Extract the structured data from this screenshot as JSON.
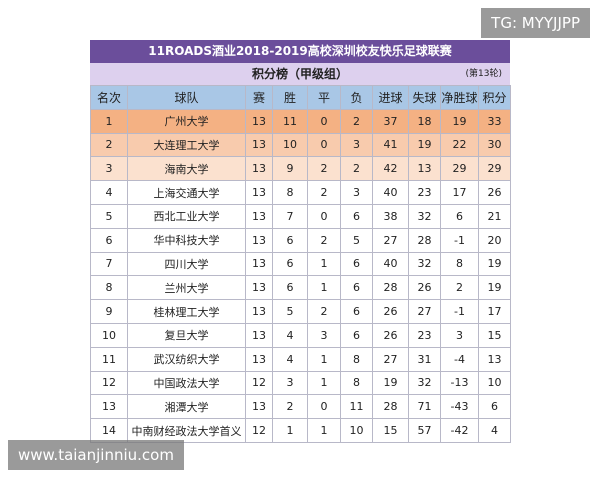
{
  "header": {
    "title": "11ROADS酒业2018-2019高校深圳校友快乐足球联赛",
    "subtitle": "积分榜（甲级组）",
    "round": "(第13轮)"
  },
  "table": {
    "columns": [
      "名次",
      "球队",
      "赛",
      "胜",
      "平",
      "负",
      "进球",
      "失球",
      "净胜球",
      "积分"
    ],
    "rows": [
      [
        1,
        "广州大学",
        13,
        11,
        0,
        2,
        37,
        18,
        19,
        33
      ],
      [
        2,
        "大连理工大学",
        13,
        10,
        0,
        3,
        41,
        19,
        22,
        30
      ],
      [
        3,
        "海南大学",
        13,
        9,
        2,
        2,
        42,
        13,
        29,
        29
      ],
      [
        4,
        "上海交通大学",
        13,
        8,
        2,
        3,
        40,
        23,
        17,
        26
      ],
      [
        5,
        "西北工业大学",
        13,
        7,
        0,
        6,
        38,
        32,
        6,
        21
      ],
      [
        6,
        "华中科技大学",
        13,
        6,
        2,
        5,
        27,
        28,
        -1,
        20
      ],
      [
        7,
        "四川大学",
        13,
        6,
        1,
        6,
        40,
        32,
        8,
        19
      ],
      [
        8,
        "兰州大学",
        13,
        6,
        1,
        6,
        28,
        26,
        2,
        19
      ],
      [
        9,
        "桂林理工大学",
        13,
        5,
        2,
        6,
        26,
        27,
        -1,
        17
      ],
      [
        10,
        "复旦大学",
        13,
        4,
        3,
        6,
        26,
        23,
        3,
        15
      ],
      [
        11,
        "武汉纺织大学",
        13,
        4,
        1,
        8,
        27,
        31,
        -4,
        13
      ],
      [
        12,
        "中国政法大学",
        12,
        3,
        1,
        8,
        19,
        32,
        -13,
        10
      ],
      [
        13,
        "湘潭大学",
        13,
        2,
        0,
        11,
        28,
        71,
        -43,
        6
      ],
      [
        14,
        "中南财经政法大学首义",
        12,
        1,
        1,
        10,
        15,
        57,
        -42,
        4
      ]
    ]
  },
  "watermarks": {
    "top": "TG: MYYJJPP",
    "bottom": "www.taianjinniu.com"
  }
}
